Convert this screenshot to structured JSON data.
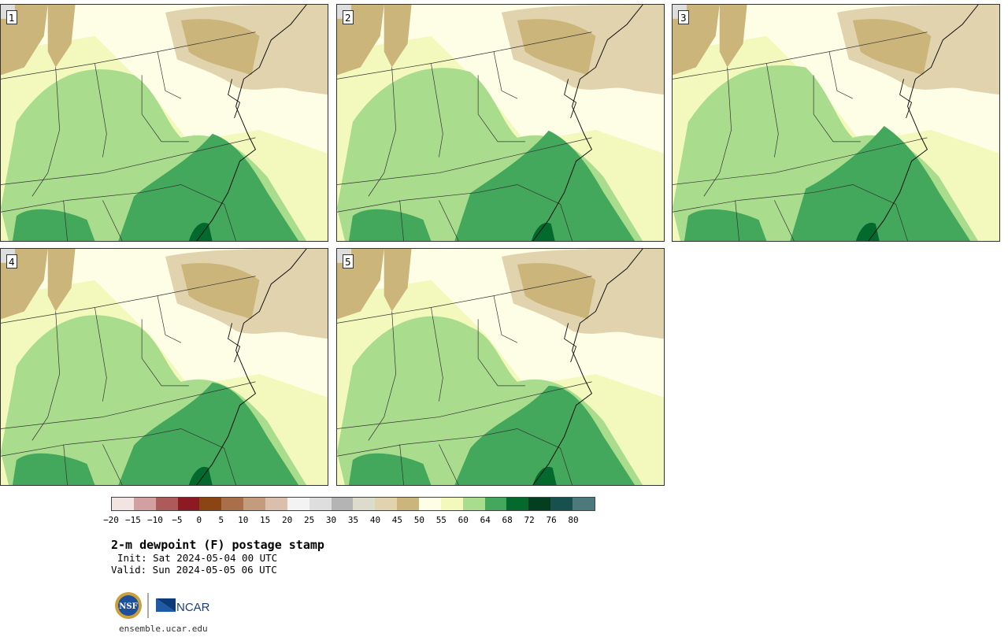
{
  "panels": [
    {
      "label": "1"
    },
    {
      "label": "2"
    },
    {
      "label": "3"
    },
    {
      "label": "4"
    },
    {
      "label": "5"
    }
  ],
  "colorbar": {
    "ticks": [
      "−20",
      "−15",
      "−10",
      "−5",
      "0",
      "5",
      "10",
      "15",
      "20",
      "25",
      "30",
      "35",
      "40",
      "45",
      "50",
      "55",
      "60",
      "64",
      "68",
      "72",
      "76",
      "80"
    ],
    "colors": [
      "#f3e4e4",
      "#d2a0a0",
      "#ae5a5a",
      "#8c1a23",
      "#8b4513",
      "#a86f4a",
      "#c49b7d",
      "#dbbfad",
      "#f3f3f3",
      "#dedede",
      "#b4b4b4",
      "#dcdccc",
      "#e1d3ae",
      "#cbb57b",
      "#fefee6",
      "#f3f9bd",
      "#a9dd8d",
      "#43a85c",
      "#03692d",
      "#033c1f",
      "#18504f",
      "#4c797b"
    ]
  },
  "map_colors": {
    "dry": "#cbb57b",
    "dry_light": "#e1d3ae",
    "cool": "#fefee6",
    "mild": "#f3f9bd",
    "moist": "#a9dd8d",
    "humid": "#43a85c",
    "very_humid": "#03692d",
    "lake": "#dedede"
  },
  "title": "2-m dewpoint (F) postage stamp",
  "init_text": "Init: Sat 2024-05-04 00 UTC",
  "valid_text": "Valid: Sun 2024-05-05 06 UTC",
  "logos": {
    "nsf_text": "NSF",
    "ncar_text": "NCAR"
  },
  "footer": "ensemble.ucar.edu"
}
